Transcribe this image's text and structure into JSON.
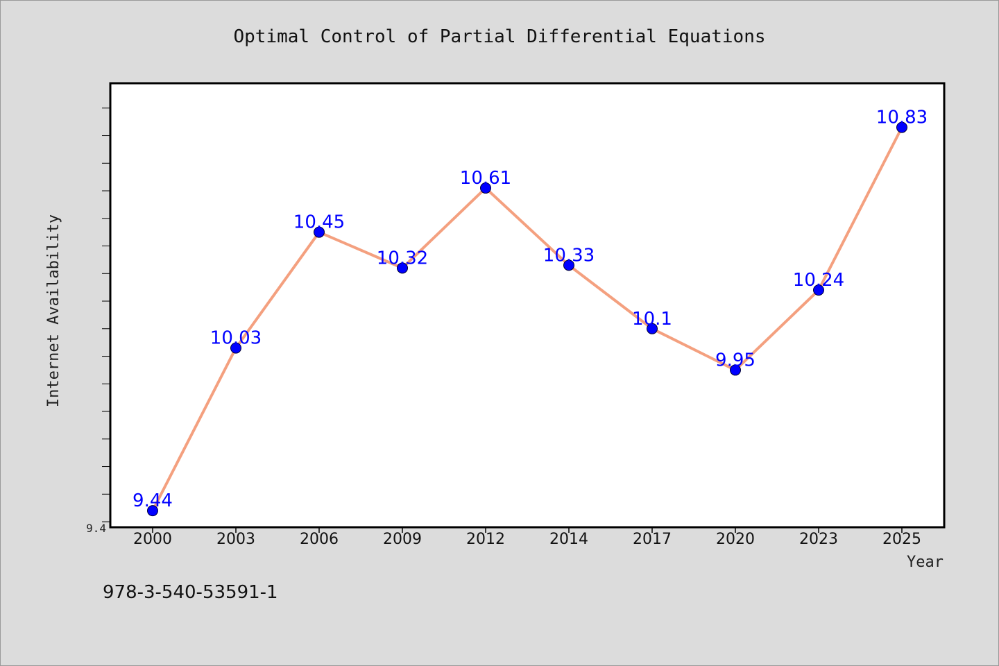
{
  "colors": {
    "background": "#dcdcdc",
    "plot_background": "#ffffff",
    "line": "#f4a07f",
    "marker": "#0000ff",
    "data_label": "#0000ff"
  },
  "footer": {
    "text": "978-3-540-53591-1"
  },
  "chart_data": {
    "type": "line",
    "title": "Optimal Control of Partial Differential Equations",
    "xlabel": "Year",
    "ylabel": "Internet Availability",
    "categories": [
      "2000",
      "2003",
      "2006",
      "2009",
      "2012",
      "2014",
      "2017",
      "2020",
      "2023",
      "2025"
    ],
    "series": [
      {
        "values": [
          9.44,
          10.03,
          10.45,
          10.32,
          10.61,
          10.33,
          10.1,
          9.95,
          10.24,
          10.83
        ],
        "labels": [
          "9.44",
          "10.03",
          "10.45",
          "10.32",
          "10.61",
          "10.33",
          "10.1",
          "9.95",
          "10.24",
          "10.83"
        ]
      }
    ],
    "ylim": [
      9.38,
      10.99
    ],
    "yticks": [
      {
        "value": 9.4,
        "label": "9.4"
      }
    ],
    "yminor_step": 0.1,
    "grid": false,
    "legend": "none"
  }
}
